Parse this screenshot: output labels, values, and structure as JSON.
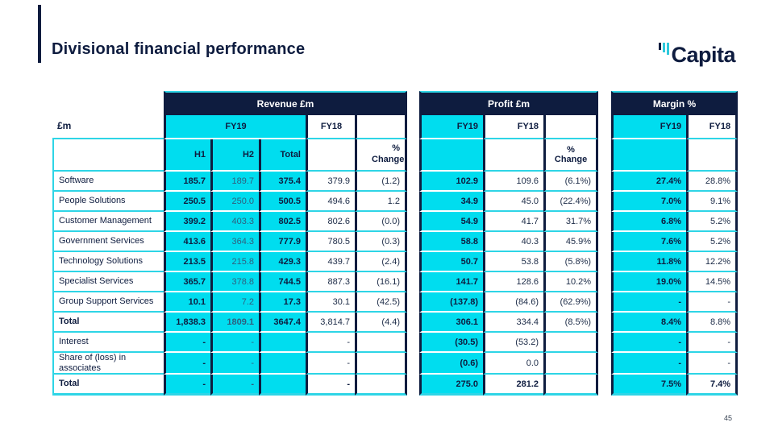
{
  "page": {
    "title": "Divisional financial performance",
    "page_number": "45",
    "logo": {
      "text": "Capita"
    },
    "colors": {
      "navy": "#0e1c3f",
      "cyan": "#00ddef",
      "cyan_line": "#2ed5e6"
    }
  },
  "table": {
    "unit_label": "£m",
    "group_headers": {
      "revenue": "Revenue £m",
      "profit": "Profit £m",
      "margin": "Margin %"
    },
    "sub_headers": {
      "revenue_fy19": "FY19",
      "revenue_fy18": "FY18",
      "revenue_h1": "H1",
      "revenue_h2": "H2",
      "revenue_total": "Total",
      "revenue_pct_change": "% Change",
      "profit_fy19": "FY19",
      "profit_fy18": "FY18",
      "profit_pct_change": "% Change",
      "margin_fy19": "FY19",
      "margin_fy18": "FY18"
    },
    "rows": [
      {
        "label": "Software",
        "cells": [
          "185.7",
          "189.7",
          "375.4",
          "379.9",
          "(1.2)",
          "102.9",
          "109.6",
          "(6.1%)",
          "27.4%",
          "28.8%"
        ]
      },
      {
        "label": "People Solutions",
        "cells": [
          "250.5",
          "250.0",
          "500.5",
          "494.6",
          "1.2",
          "34.9",
          "45.0",
          "(22.4%)",
          "7.0%",
          "9.1%"
        ]
      },
      {
        "label": "Customer Management",
        "cells": [
          "399.2",
          "403.3",
          "802.5",
          "802.6",
          "(0.0)",
          "54.9",
          "41.7",
          "31.7%",
          "6.8%",
          "5.2%"
        ]
      },
      {
        "label": "Government Services",
        "cells": [
          "413.6",
          "364.3",
          "777.9",
          "780.5",
          "(0.3)",
          "58.8",
          "40.3",
          "45.9%",
          "7.6%",
          "5.2%"
        ]
      },
      {
        "label": "Technology Solutions",
        "cells": [
          "213.5",
          "215.8",
          "429.3",
          "439.7",
          "(2.4)",
          "50.7",
          "53.8",
          "(5.8%)",
          "11.8%",
          "12.2%"
        ]
      },
      {
        "label": "Specialist Services",
        "cells": [
          "365.7",
          "378.8",
          "744.5",
          "887.3",
          "(16.1)",
          "141.7",
          "128.6",
          "10.2%",
          "19.0%",
          "14.5%"
        ]
      },
      {
        "label": "Group Support Services",
        "cells": [
          "10.1",
          "7.2",
          "17.3",
          "30.1",
          "(42.5)",
          "(137.8)",
          "(84.6)",
          "(62.9%)",
          "-",
          "-"
        ]
      },
      {
        "label": "Total",
        "bold": true,
        "cells": [
          "1,838.3",
          "1809.1",
          "3647.4",
          "3,814.7",
          "(4.4)",
          "306.1",
          "334.4",
          "(8.5%)",
          "8.4%",
          "8.8%"
        ]
      },
      {
        "label": "Interest",
        "cells": [
          "-",
          "-",
          "",
          "-",
          "",
          "(30.5)",
          "(53.2)",
          "",
          "-",
          "-"
        ]
      },
      {
        "label": "Share of (loss) in associates",
        "cells": [
          "-",
          "-",
          "",
          "-",
          "",
          "(0.6)",
          "0.0",
          "",
          "-",
          "-"
        ]
      },
      {
        "label": "Total",
        "bold": true,
        "bold_values": true,
        "cells": [
          "-",
          "-",
          "",
          "-",
          "",
          "275.0",
          "281.2",
          "",
          "7.5%",
          "7.4%"
        ]
      }
    ]
  }
}
